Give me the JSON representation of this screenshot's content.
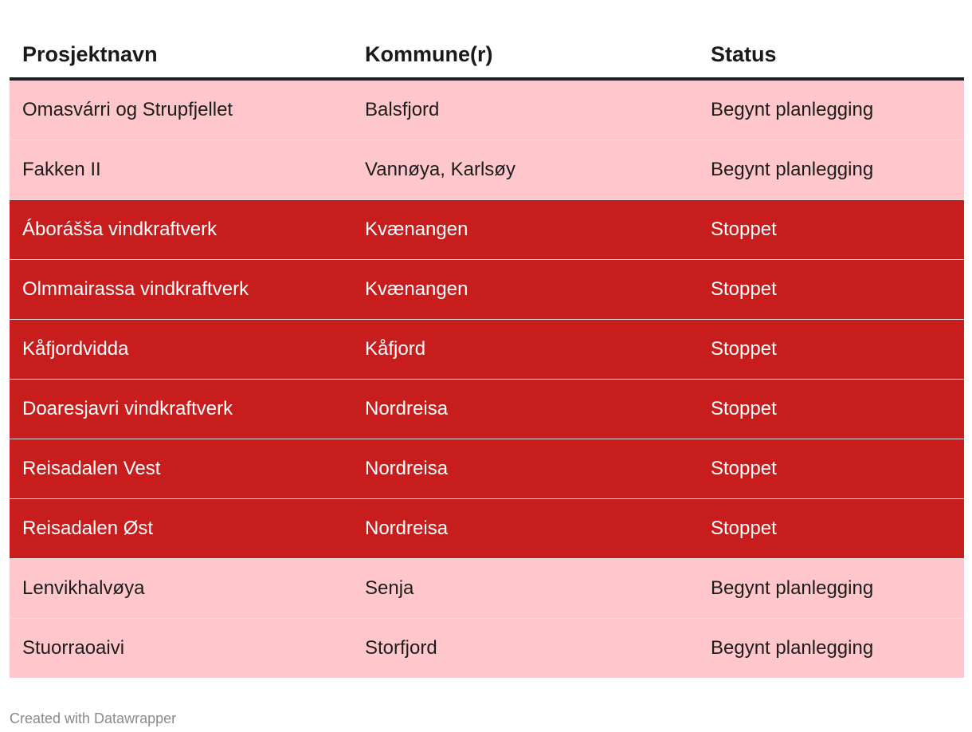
{
  "chart_data": {
    "type": "table",
    "columns": [
      {
        "key": "prosjektnavn",
        "label": "Prosjektnavn"
      },
      {
        "key": "kommune",
        "label": "Kommune(r)"
      },
      {
        "key": "status",
        "label": "Status"
      }
    ],
    "rows": [
      {
        "prosjektnavn": "Omasvárri og Strupfjellet",
        "kommune": "Balsfjord",
        "status": "Begynt planlegging"
      },
      {
        "prosjektnavn": "Fakken II",
        "kommune": "Vannøya, Karlsøy",
        "status": "Begynt planlegging"
      },
      {
        "prosjektnavn": "Áborášša vindkraftverk",
        "kommune": "Kvænangen",
        "status": "Stoppet"
      },
      {
        "prosjektnavn": "Olmmairassa vindkraftverk",
        "kommune": "Kvænangen",
        "status": "Stoppet"
      },
      {
        "prosjektnavn": "Kåfjordvidda",
        "kommune": "Kåfjord",
        "status": "Stoppet"
      },
      {
        "prosjektnavn": "Doaresjavri vindkraftverk",
        "kommune": "Nordreisa",
        "status": "Stoppet"
      },
      {
        "prosjektnavn": "Reisadalen Vest",
        "kommune": "Nordreisa",
        "status": "Stoppet"
      },
      {
        "prosjektnavn": "Reisadalen Øst",
        "kommune": "Nordreisa",
        "status": "Stoppet"
      },
      {
        "prosjektnavn": "Lenvikhalvøya",
        "kommune": "Senja",
        "status": "Begynt planlegging"
      },
      {
        "prosjektnavn": "Stuorraoaivi",
        "kommune": "Storfjord",
        "status": "Begynt planlegging"
      }
    ],
    "status_styles": {
      "Begynt planlegging": "planning",
      "Stoppet": "stopped"
    },
    "colors": {
      "row_planning_bg": "#ffc6cc",
      "row_planning_text": "#1d1d1d",
      "row_stopped_bg": "#c71e1d",
      "row_stopped_text": "#ffffff",
      "header_text": "#1a1a1a",
      "header_rule": "#1f1f1f",
      "footer_text": "#8a8a8a"
    }
  },
  "footer": {
    "attribution": "Created with Datawrapper"
  }
}
